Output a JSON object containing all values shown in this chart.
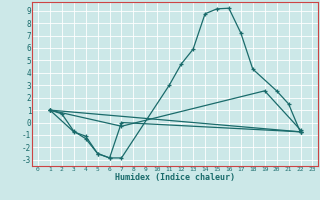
{
  "xlabel": "Humidex (Indice chaleur)",
  "bg_color": "#cce8e8",
  "line_color": "#1a6b6b",
  "grid_color": "#ffffff",
  "border_color": "#cc4444",
  "xlim": [
    -0.5,
    23.5
  ],
  "ylim": [
    -3.5,
    9.7
  ],
  "xticks": [
    0,
    1,
    2,
    3,
    4,
    5,
    6,
    7,
    8,
    9,
    10,
    11,
    12,
    13,
    14,
    15,
    16,
    17,
    18,
    19,
    20,
    21,
    22,
    23
  ],
  "yticks": [
    -3,
    -2,
    -1,
    0,
    1,
    2,
    3,
    4,
    5,
    6,
    7,
    8,
    9
  ],
  "lines": [
    {
      "x": [
        1,
        2,
        3,
        4,
        5,
        6,
        7,
        11,
        12,
        13,
        14,
        15,
        16,
        17,
        18,
        20,
        21,
        22
      ],
      "y": [
        1,
        0.7,
        -0.7,
        -1.3,
        -2.5,
        -2.85,
        -2.85,
        3.0,
        4.7,
        5.9,
        8.75,
        9.15,
        9.2,
        7.2,
        4.3,
        2.55,
        1.5,
        -0.8
      ]
    },
    {
      "x": [
        1,
        3,
        4,
        5,
        6,
        7,
        22
      ],
      "y": [
        1,
        -0.75,
        -1.1,
        -2.5,
        -2.85,
        0.0,
        -0.75
      ]
    },
    {
      "x": [
        1,
        22
      ],
      "y": [
        1,
        -0.75
      ]
    },
    {
      "x": [
        1,
        7,
        19,
        22
      ],
      "y": [
        1,
        -0.3,
        2.55,
        -0.6
      ]
    }
  ]
}
